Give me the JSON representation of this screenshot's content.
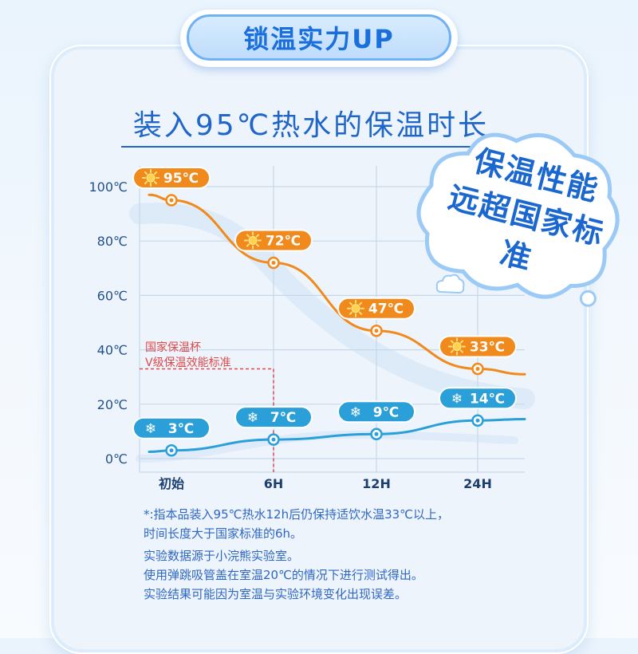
{
  "badge": {
    "label": "锁温实力UP"
  },
  "title": "装入95℃热水的保温时长",
  "cloud": {
    "line1": "保温性能",
    "line2": "远超国家标准"
  },
  "standard": {
    "line1": "国家保温杯",
    "line2": "V级保温效能标准"
  },
  "chart_data": {
    "type": "line",
    "title": "装入95℃热水的保温时长",
    "categories": [
      "初始",
      "6H",
      "12H",
      "24H"
    ],
    "y_ticks": [
      "100℃",
      "80℃",
      "60℃",
      "40℃",
      "20℃",
      "0℃"
    ],
    "ylim": [
      0,
      100
    ],
    "grid": true,
    "series": [
      {
        "name": "",
        "values": [
          95,
          72,
          47,
          33
        ],
        "labels": [
          "95℃",
          "72℃",
          "47℃",
          "33℃"
        ],
        "color": "#f08a1c"
      },
      {
        "name": "",
        "values": [
          3,
          7,
          9,
          14
        ],
        "labels": [
          "3℃",
          "7℃",
          "9℃",
          "14℃"
        ],
        "color": "#2a9fd8"
      }
    ],
    "reference": {
      "y": 33,
      "x": "6H",
      "color": "#e04a4a"
    }
  },
  "notes": [
    "*:指本品装入95℃热水12h后仍保持适饮水温33℃以上，",
    "时间长度大于国家标准的6h。",
    "实验数据源于小浣熊实验室。",
    "使用弹跳吸管盖在室温20℃的情况下进行测试得出。",
    "实验结果可能因为室温与实验环境变化出现误差。"
  ],
  "colors": {
    "accent": "#1f66c8",
    "hot": "#f08a1c",
    "cold": "#2a9fd8",
    "standard": "#e04a4a"
  },
  "icons": {
    "hot": "sun-icon",
    "cold": "snowflake-icon"
  }
}
